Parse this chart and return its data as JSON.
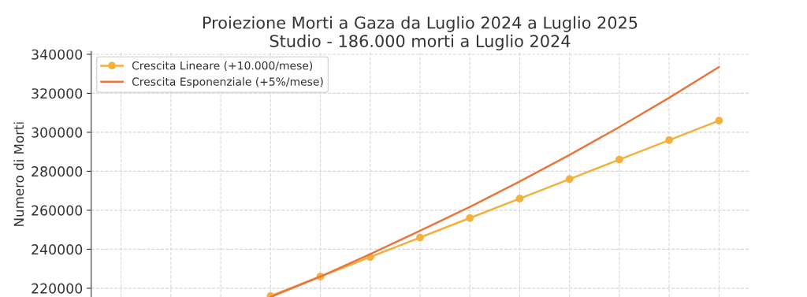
{
  "chart_data": {
    "type": "line",
    "title": "Proiezione Morti a Gaza da Luglio 2024 a Luglio 2025\nStudio - 186.000 morti a Luglio 2024",
    "ylabel": "Numero di Morti",
    "categories": [
      null,
      null,
      null,
      null,
      null,
      null,
      null,
      null,
      null,
      null,
      null,
      null,
      null
    ],
    "series": [
      {
        "name": "Crescita Lineare (+10.000/mese)",
        "color": "#f4b03c",
        "marker": "circle",
        "values": [
          null,
          null,
          null,
          216000,
          226000,
          236000,
          246000,
          256000,
          266000,
          276000,
          286000,
          296000,
          306000
        ]
      },
      {
        "name": "Crescita Esponenziale (+5%/mese)",
        "color": "#e8763f",
        "marker": "none",
        "values": [
          null,
          null,
          null,
          215500,
          226000,
          237500,
          249500,
          261700,
          274800,
          288400,
          302700,
          317700,
          333500
        ]
      }
    ],
    "ylim": [
      215500,
      341500
    ],
    "yticks": [
      220000,
      240000,
      260000,
      280000,
      300000,
      320000,
      340000
    ],
    "grid": true,
    "legend": "top left",
    "tick_labels": "y"
  }
}
